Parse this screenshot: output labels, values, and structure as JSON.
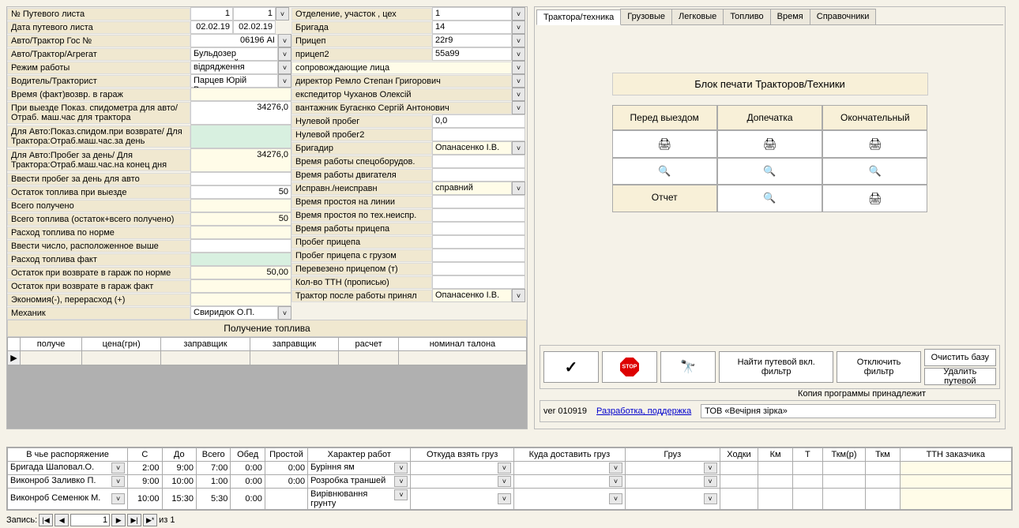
{
  "left": {
    "rows_a": [
      {
        "label": "№ Путевого листа",
        "v1": "1",
        "v2": "1",
        "dd": true
      },
      {
        "label": "Дата путевого листа",
        "v1": "02.02.19",
        "v2": "02.02.19"
      },
      {
        "label": "Авто/Трактор Гос №",
        "v1": "06196 АІ",
        "span": true,
        "dd": true
      },
      {
        "label": "Авто/Трактор/Агрегат",
        "v1": "Бульдозер гусеничний",
        "span": true,
        "dd": true,
        "left": true
      },
      {
        "label": "Режим работы",
        "v1": "відрядження",
        "span": true,
        "dd": true,
        "left": true
      },
      {
        "label": "Водитель/Тракторист",
        "v1": "Парцев Юрій Васильович",
        "span": true,
        "dd": true,
        "left": true
      },
      {
        "label": "Время (факт)возвр. в гараж",
        "v1": "",
        "span": true,
        "cream": true
      },
      {
        "label": "При выезде Показ. спидометра для авто/ Отраб. маш.час для трактора",
        "v1": "34276,0",
        "span": true,
        "tall": true
      },
      {
        "label": "Для Авто:Показ.спидом.при возврате/ Для Трактора:Отраб.маш.час.за день",
        "v1": "",
        "span": true,
        "mint": true,
        "tall": true
      },
      {
        "label": "Для Авто:Пробег за день/ Для Трактора:Отраб.маш.час.на конец дня",
        "v1": "34276,0",
        "span": true,
        "cream": true,
        "tall": true
      },
      {
        "label": "Ввести пробег за день для авто",
        "v1": "",
        "span": true
      },
      {
        "label": "Остаток топлива при выезде",
        "v1": "50",
        "span": true
      },
      {
        "label": "Всего получено",
        "v1": "",
        "span": true,
        "cream": true
      },
      {
        "label": "Всего топлива (остаток+всего получено)",
        "v1": "50",
        "span": true,
        "cream": true
      },
      {
        "label": "Расход топлива по норме",
        "v1": "",
        "span": true,
        "cream": true
      },
      {
        "label": "Ввести число, расположенное выше",
        "v1": "",
        "span": true
      },
      {
        "label": "Расход топлива факт",
        "v1": "",
        "span": true,
        "mint": true
      },
      {
        "label": "Остаток при возврате в гараж по норме",
        "v1": "50,00",
        "span": true,
        "cream": true
      },
      {
        "label": "Остаток при возврате в гараж  факт",
        "v1": "",
        "span": true,
        "cream": true
      },
      {
        "label": "Экономия(-), перерасход (+)",
        "v1": "",
        "span": true,
        "cream": true
      },
      {
        "label": "Механик",
        "v1": "Свиридюк О.П.",
        "span": true,
        "dd": true,
        "left": true
      }
    ],
    "rows_b": [
      {
        "label": "Отделение, участок , цех",
        "v": "1",
        "dd": true
      },
      {
        "label": "Бригада",
        "v": "14",
        "dd": true
      },
      {
        "label": "Прицеп",
        "v": "22г9",
        "dd": true
      },
      {
        "label": "прицеп2",
        "v": "55а99",
        "dd": true
      },
      {
        "label": "сопровождающие лица",
        "full": true,
        "dd": true,
        "cream": true
      },
      {
        "label": "директор Ремло Степан Григорович",
        "full": true,
        "dd": true
      },
      {
        "label": "експедитор Чуханов Олексій",
        "full": true,
        "dd": true
      },
      {
        "label": "вантажник Бугаєнко Сергій Антонович",
        "full": true,
        "dd": true
      },
      {
        "label": "Нулевой пробег",
        "v": "0,0"
      },
      {
        "label": "Нулевой пробег2",
        "v": ""
      },
      {
        "label": "Бригадир",
        "v": "Опанасенко І.В.",
        "dd": true,
        "cream": true
      },
      {
        "label": "Время работы спецоборудов.",
        "v": ""
      },
      {
        "label": "Время работы двигателя",
        "v": ""
      },
      {
        "label": "Исправн./неисправн",
        "v": "справний",
        "dd": true,
        "cream": true
      },
      {
        "label": "Время простоя на линии",
        "v": ""
      },
      {
        "label": "Время простоя по тех.неиспр.",
        "v": ""
      },
      {
        "label": "Время работы прицепа",
        "v": ""
      },
      {
        "label": "Пробег прицепа",
        "v": ""
      },
      {
        "label": "Пробег прицепа с грузом",
        "v": ""
      },
      {
        "label": "Перевезено прицепом (т)",
        "v": ""
      },
      {
        "label": "Кол-во ТТН (прописью)",
        "v": ""
      },
      {
        "label": "Трактор после работы принял",
        "v": "Опанасенко І.В.",
        "dd": true,
        "cream": true
      }
    ],
    "fuel_header": "Получение топлива",
    "fuel_cols": [
      "получе",
      "цена(грн)",
      "заправщик",
      "заправщик",
      "расчет",
      "номинал талона"
    ]
  },
  "right": {
    "tabs": [
      "Трактора/техника",
      "Грузовые",
      "Легковые",
      "Топливо",
      "Время",
      "Справочники"
    ],
    "print_title": "Блок печати Тракторов/Техники",
    "print_cols": [
      "Перед выездом",
      "Допечатка",
      "Окончательный"
    ],
    "report": "Отчет",
    "toolbar": {
      "find": "Найти путевой вкл. фильтр",
      "disable": "Отключить фильтр",
      "clear": "Очистить базу",
      "delete": "Удалить путевой"
    },
    "version": "ver 010919",
    "dev_link": "Разработка, поддержка",
    "copy": "Копия программы принадлежит",
    "owner": "ТОВ «Вечірня зірка»"
  },
  "bottom": {
    "cols": [
      "В чье распоряжение",
      "С",
      "До",
      "Всего",
      "Обед",
      "Простой",
      "Характер работ",
      "Откуда взять груз",
      "Куда доставить груз",
      "Груз",
      "Ходки",
      "Км",
      "Т",
      "Ткм(р)",
      "Ткм",
      "ТТН заказчика"
    ],
    "rows": [
      {
        "name": "Бригада Шаповал.О.",
        "c": "2:00",
        "do": "9:00",
        "vs": "7:00",
        "ob": "0:00",
        "pr": "0:00",
        "har": "Буріння ям"
      },
      {
        "name": "Виконроб Заливко П.",
        "c": "9:00",
        "do": "10:00",
        "vs": "1:00",
        "ob": "0:00",
        "pr": "0:00",
        "har": "Розробка траншей"
      },
      {
        "name": "Виконроб Семенюк М.",
        "c": "10:00",
        "do": "15:30",
        "vs": "5:30",
        "ob": "0:00",
        "pr": "",
        "har": "Вирівнювання грунту"
      }
    ],
    "nav_label": "Запись:",
    "nav_pos": "1",
    "nav_total": "из  1"
  }
}
